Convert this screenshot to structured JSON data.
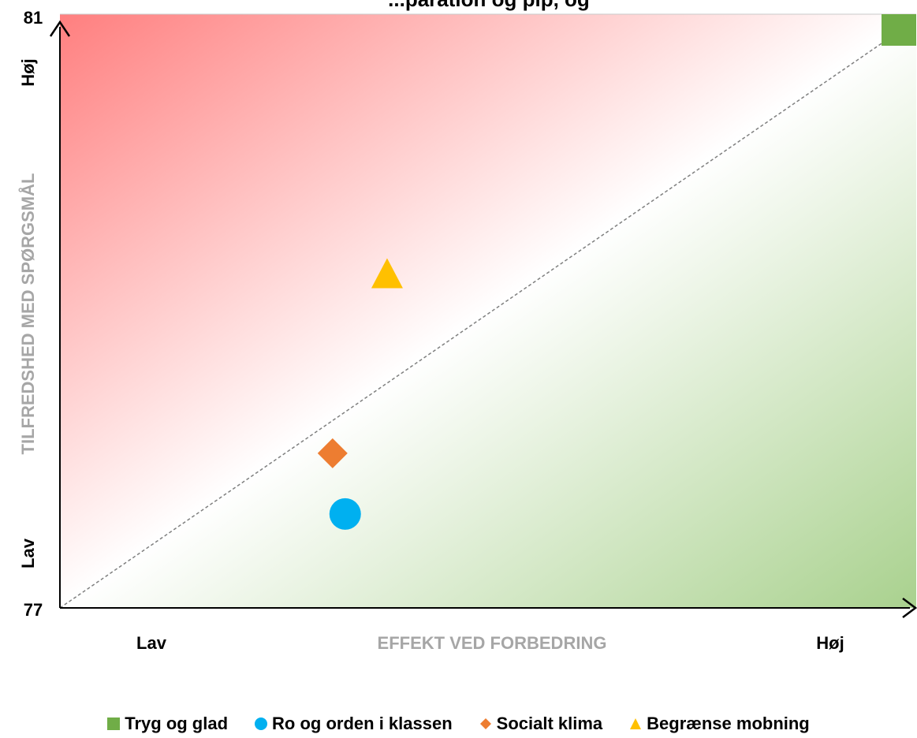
{
  "chart_data": {
    "type": "scatter",
    "title": "...paration og plp, og",
    "xlabel": "EFFEKT VED FORBEDRING",
    "ylabel": "TILFREDSHED MED SPØRGSMÅL",
    "ylim": [
      77,
      81
    ],
    "y_ticks": [
      "81",
      "77"
    ],
    "x_low_label": "Lav",
    "x_high_label": "Høj",
    "y_low_label": "Lav",
    "y_high_label": "Høj",
    "quadrant_colors": {
      "high_satisfaction_low_effect": "#ff7f7f",
      "low_satisfaction_high_effect": "#a9d18e"
    },
    "series": [
      {
        "name": "Tryg og glad",
        "marker": "square",
        "color": "#70ad47",
        "x": 1.0,
        "y": 81.0
      },
      {
        "name": "Ro og orden i klassen",
        "marker": "circle",
        "color": "#00b0f0",
        "x": 0.34,
        "y": 77.65
      },
      {
        "name": "Socialt klima",
        "marker": "diamond",
        "color": "#ed7d31",
        "x": 0.325,
        "y": 78.07
      },
      {
        "name": "Begrænse mobning",
        "marker": "triangle",
        "color": "#ffc000",
        "x": 0.39,
        "y": 79.3
      }
    ]
  }
}
